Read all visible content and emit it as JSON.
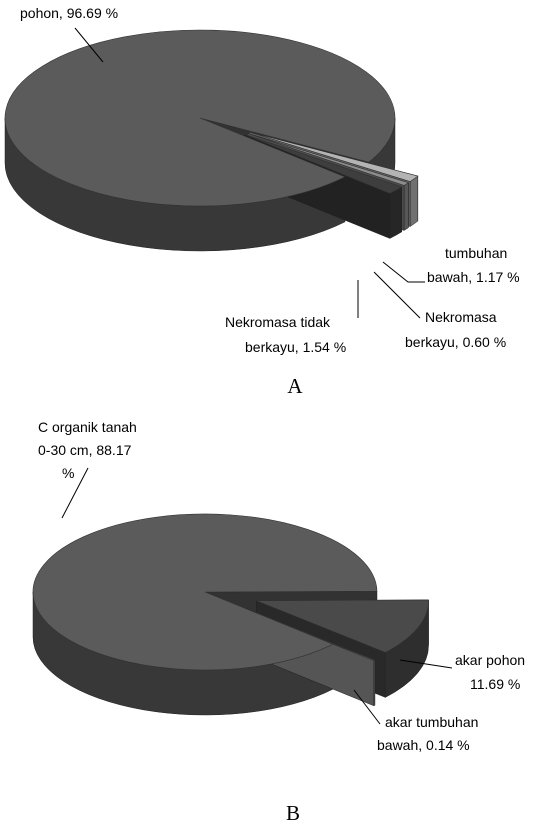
{
  "chart_data": [
    {
      "type": "pie3d",
      "caption": "A",
      "values": [
        96.69,
        1.17,
        0.6,
        1.54
      ],
      "value_labels": [
        [
          "pohon,  96.69 %"
        ],
        [
          "tumbuhan",
          "bawah,  1.17 %"
        ],
        [
          "Nekromasa",
          "berkayu,  0.60  %"
        ],
        [
          "Nekromasa tidak",
          "berkayu,  1.54 %"
        ]
      ],
      "colors": [
        "#5b5b5b",
        "#b4b4b4",
        "#8c8c8c",
        "#3e3e3e"
      ]
    },
    {
      "type": "pie3d",
      "caption": "B",
      "values": [
        88.17,
        11.69,
        0.14
      ],
      "value_labels": [
        [
          "C organik tanah",
          "0-30 cm,  88.17",
          "%"
        ],
        [
          "akar pohon",
          "11.69 %"
        ],
        [
          "akar tumbuhan",
          "bawah,  0.14 %"
        ]
      ],
      "colors": [
        "#5b5b5b",
        "#4a4a4a",
        "#9a9a9a"
      ]
    }
  ]
}
